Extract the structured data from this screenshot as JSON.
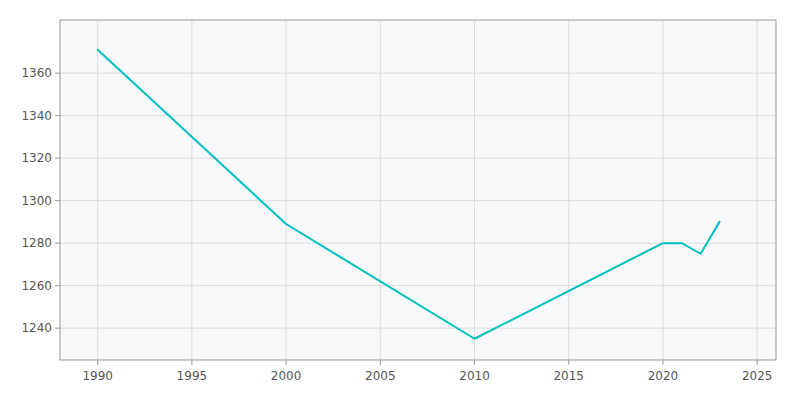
{
  "chart_data": {
    "type": "line",
    "x": [
      1990,
      2000,
      2010,
      2020,
      2021,
      2022,
      2023
    ],
    "values": [
      1371,
      1289,
      1235,
      1280,
      1280,
      1275,
      1290
    ],
    "color": "#00BFBF",
    "xlim": [
      1988,
      2026
    ],
    "ylim": [
      1225,
      1385
    ],
    "xticks": [
      1990,
      1995,
      2000,
      2005,
      2010,
      2015,
      2020,
      2025
    ],
    "yticks": [
      1240,
      1260,
      1280,
      1300,
      1320,
      1340,
      1360
    ],
    "grid": true
  }
}
